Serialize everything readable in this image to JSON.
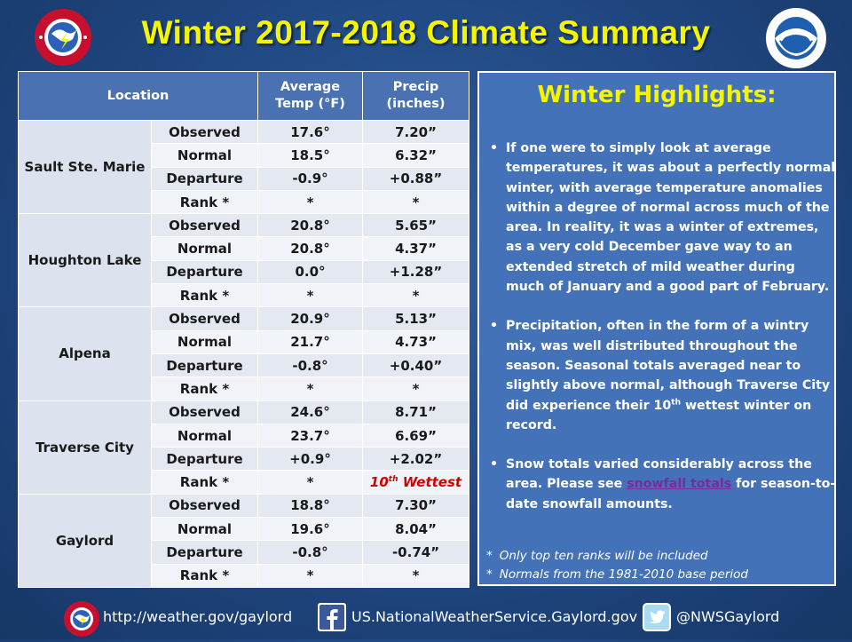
{
  "title": "Winter 2017-2018 Climate Summary",
  "colors": {
    "title": "#f5f500",
    "header": "#4a72b3",
    "highlight_rank": "#d40000",
    "panel": "#4472b9"
  },
  "logos": {
    "nws": "nws-logo-icon",
    "noaa": "noaa-logo-icon"
  },
  "table": {
    "headers": [
      "Location",
      "Average Temp (°F)",
      "Precip (inches)"
    ],
    "header_location": "Location",
    "header_temp_1": "Average",
    "header_temp_2": "Temp (°F)",
    "header_precip_1": "Precip",
    "header_precip_2": "(inches)",
    "row_labels": [
      "Observed",
      "Normal",
      "Departure",
      "Rank *"
    ],
    "locations": [
      {
        "name": "Sault Ste. Marie",
        "rows": [
          {
            "label": "Observed",
            "temp": "17.6°",
            "precip": "7.20”"
          },
          {
            "label": "Normal",
            "temp": "18.5°",
            "precip": "6.32”"
          },
          {
            "label": "Departure",
            "temp": "-0.9°",
            "precip": "+0.88”"
          },
          {
            "label": "Rank *",
            "temp": "*",
            "precip": "*"
          }
        ]
      },
      {
        "name": "Houghton Lake",
        "rows": [
          {
            "label": "Observed",
            "temp": "20.8°",
            "precip": "5.65”"
          },
          {
            "label": "Normal",
            "temp": "20.8°",
            "precip": "4.37”"
          },
          {
            "label": "Departure",
            "temp": "0.0°",
            "precip": "+1.28”"
          },
          {
            "label": "Rank *",
            "temp": "*",
            "precip": "*"
          }
        ]
      },
      {
        "name": "Alpena",
        "rows": [
          {
            "label": "Observed",
            "temp": "20.9°",
            "precip": "5.13”"
          },
          {
            "label": "Normal",
            "temp": "21.7°",
            "precip": "4.73”"
          },
          {
            "label": "Departure",
            "temp": "-0.8°",
            "precip": "+0.40”"
          },
          {
            "label": "Rank *",
            "temp": "*",
            "precip": "*"
          }
        ]
      },
      {
        "name": "Traverse City",
        "rows": [
          {
            "label": "Observed",
            "temp": "24.6°",
            "precip": "8.71”"
          },
          {
            "label": "Normal",
            "temp": "23.7°",
            "precip": "6.69”"
          },
          {
            "label": "Departure",
            "temp": "+0.9°",
            "precip": "+2.02”"
          },
          {
            "label": "Rank *",
            "temp": "*",
            "precip": "10th Wettest",
            "precip_ordinal": "10",
            "precip_suffix": "th",
            "precip_rest": " Wettest"
          }
        ]
      },
      {
        "name": "Gaylord",
        "rows": [
          {
            "label": "Observed",
            "temp": "18.8°",
            "precip": "7.30”"
          },
          {
            "label": "Normal",
            "temp": "19.6°",
            "precip": "8.04”"
          },
          {
            "label": "Departure",
            "temp": "-0.8°",
            "precip": "-0.74”"
          },
          {
            "label": "Rank *",
            "temp": "*",
            "precip": "*"
          }
        ]
      }
    ]
  },
  "highlights": {
    "title": "Winter Highlights:",
    "bullet1": "If one were to simply look at average temperatures, it was about a perfectly normal winter, with average temperature anomalies within a degree of normal across much of the area.  In reality, it was a winter of extremes, as a very cold December gave way to an extended stretch of mild weather during much of January and a good part of February.",
    "bullet2_a": "Precipitation, often in the form of a  wintry mix, was well distributed throughout the season. Seasonal totals averaged near to slightly above normal, although Traverse City did experience their 10",
    "bullet2_sup": "th",
    "bullet2_b": " wettest winter on record.",
    "bullet3_a": "Snow totals varied considerably across the area.  Please see ",
    "bullet3_link": "snowfall totals",
    "bullet3_b": " for season-to-date snowfall amounts.",
    "note1": "Only top ten ranks will be included",
    "note2": "Normals from the 1981-2010 base period"
  },
  "footer": {
    "website": "http://weather.gov/gaylord",
    "facebook": "US.NationalWeatherService.Gaylord.gov",
    "twitter": "@NWSGaylord"
  }
}
